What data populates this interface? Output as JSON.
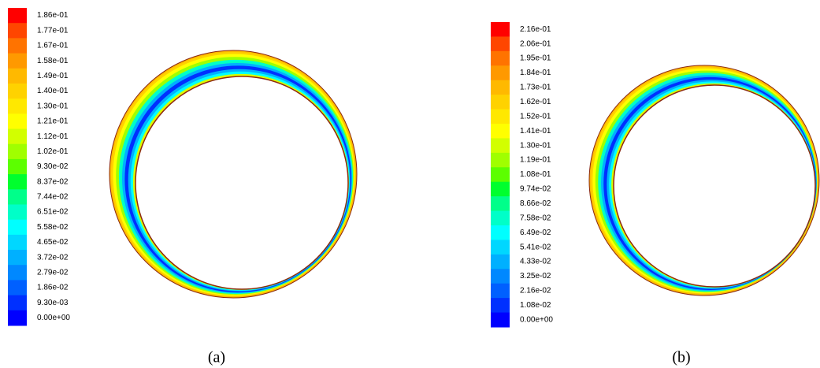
{
  "chart_data": [
    {
      "type": "contour",
      "caption": "(a)",
      "colors": [
        "#ff0000",
        "#ff4600",
        "#ff7300",
        "#ff9900",
        "#ffb900",
        "#ffd200",
        "#ffe800",
        "#ffff00",
        "#d2ff00",
        "#a0ff00",
        "#5cff00",
        "#00ff2e",
        "#00ff8a",
        "#00ffc8",
        "#00ffff",
        "#00d7ff",
        "#00b0ff",
        "#0088ff",
        "#0060ff",
        "#0030ff",
        "#0000ff"
      ],
      "colorbar_ticks": [
        {
          "value": 0.186,
          "label": "1.86e-01"
        },
        {
          "value": 0.177,
          "label": "1.77e-01"
        },
        {
          "value": 0.167,
          "label": "1.67e-01"
        },
        {
          "value": 0.158,
          "label": "1.58e-01"
        },
        {
          "value": 0.149,
          "label": "1.49e-01"
        },
        {
          "value": 0.14,
          "label": "1.40e-01"
        },
        {
          "value": 0.13,
          "label": "1.30e-01"
        },
        {
          "value": 0.121,
          "label": "1.21e-01"
        },
        {
          "value": 0.112,
          "label": "1.12e-01"
        },
        {
          "value": 0.102,
          "label": "1.02e-01"
        },
        {
          "value": 0.093,
          "label": "9.30e-02"
        },
        {
          "value": 0.0837,
          "label": "8.37e-02"
        },
        {
          "value": 0.0744,
          "label": "7.44e-02"
        },
        {
          "value": 0.0651,
          "label": "6.51e-02"
        },
        {
          "value": 0.0558,
          "label": "5.58e-02"
        },
        {
          "value": 0.0465,
          "label": "4.65e-02"
        },
        {
          "value": 0.0372,
          "label": "3.72e-02"
        },
        {
          "value": 0.0279,
          "label": "2.79e-02"
        },
        {
          "value": 0.0186,
          "label": "1.86e-02"
        },
        {
          "value": 0.0093,
          "label": "9.30e-03"
        },
        {
          "value": 0,
          "label": "0.00e+00"
        }
      ]
    },
    {
      "type": "contour",
      "caption": "(b)",
      "colors": [
        "#ff0000",
        "#ff4600",
        "#ff7300",
        "#ff9900",
        "#ffb900",
        "#ffd200",
        "#ffe800",
        "#ffff00",
        "#d2ff00",
        "#a0ff00",
        "#5cff00",
        "#00ff2e",
        "#00ff8a",
        "#00ffc8",
        "#00ffff",
        "#00d7ff",
        "#00b0ff",
        "#0088ff",
        "#0060ff",
        "#0030ff",
        "#0000ff"
      ],
      "colorbar_ticks": [
        {
          "value": 0.216,
          "label": "2.16e-01"
        },
        {
          "value": 0.206,
          "label": "2.06e-01"
        },
        {
          "value": 0.195,
          "label": "1.95e-01"
        },
        {
          "value": 0.184,
          "label": "1.84e-01"
        },
        {
          "value": 0.173,
          "label": "1.73e-01"
        },
        {
          "value": 0.162,
          "label": "1.62e-01"
        },
        {
          "value": 0.152,
          "label": "1.52e-01"
        },
        {
          "value": 0.141,
          "label": "1.41e-01"
        },
        {
          "value": 0.13,
          "label": "1.30e-01"
        },
        {
          "value": 0.119,
          "label": "1.19e-01"
        },
        {
          "value": 0.108,
          "label": "1.08e-01"
        },
        {
          "value": 0.0974,
          "label": "9.74e-02"
        },
        {
          "value": 0.0866,
          "label": "8.66e-02"
        },
        {
          "value": 0.0758,
          "label": "7.58e-02"
        },
        {
          "value": 0.0649,
          "label": "6.49e-02"
        },
        {
          "value": 0.0541,
          "label": "5.41e-02"
        },
        {
          "value": 0.0433,
          "label": "4.33e-02"
        },
        {
          "value": 0.0325,
          "label": "3.25e-02"
        },
        {
          "value": 0.0216,
          "label": "2.16e-02"
        },
        {
          "value": 0.0108,
          "label": "1.08e-02"
        },
        {
          "value": 0,
          "label": "0.00e+00"
        }
      ]
    }
  ]
}
